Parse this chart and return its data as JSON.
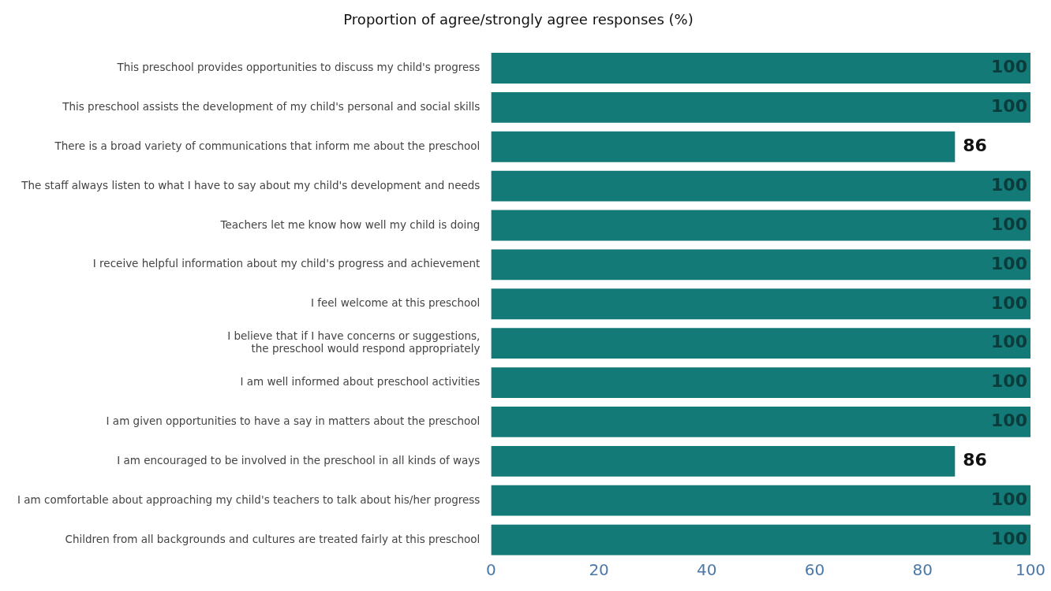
{
  "chart_data": {
    "type": "bar",
    "orientation": "horizontal",
    "title": "Proportion of agree/strongly agree responses (%)",
    "categories": [
      "This preschool provides opportunities to discuss my child's progress",
      "This preschool assists the development of my child's personal and social skills",
      "There is a broad variety of communications that inform me about the preschool",
      "The staff always listen to what I have to say about my child's development and needs",
      "Teachers let me know how well my child is doing",
      "I receive helpful information about my child's progress and achievement",
      "I feel welcome at this preschool",
      "I believe that if I have concerns or suggestions,\nthe preschool would respond appropriately",
      "I am well informed about preschool activities",
      "I am given opportunities to have a say in matters about the preschool",
      "I am encouraged to be involved in the preschool in all kinds of ways",
      "I am comfortable about approaching my child's teachers to talk about his/her progress",
      "Children from all backgrounds and cultures are treated fairly at this preschool"
    ],
    "values": [
      100,
      100,
      86,
      100,
      100,
      100,
      100,
      100,
      100,
      100,
      86,
      100,
      100
    ],
    "color": "#137a78",
    "xlim": [
      0,
      100
    ],
    "xticks": [
      0,
      20,
      40,
      60,
      80,
      100
    ],
    "data_labels": true,
    "grid": false,
    "legend": false
  }
}
